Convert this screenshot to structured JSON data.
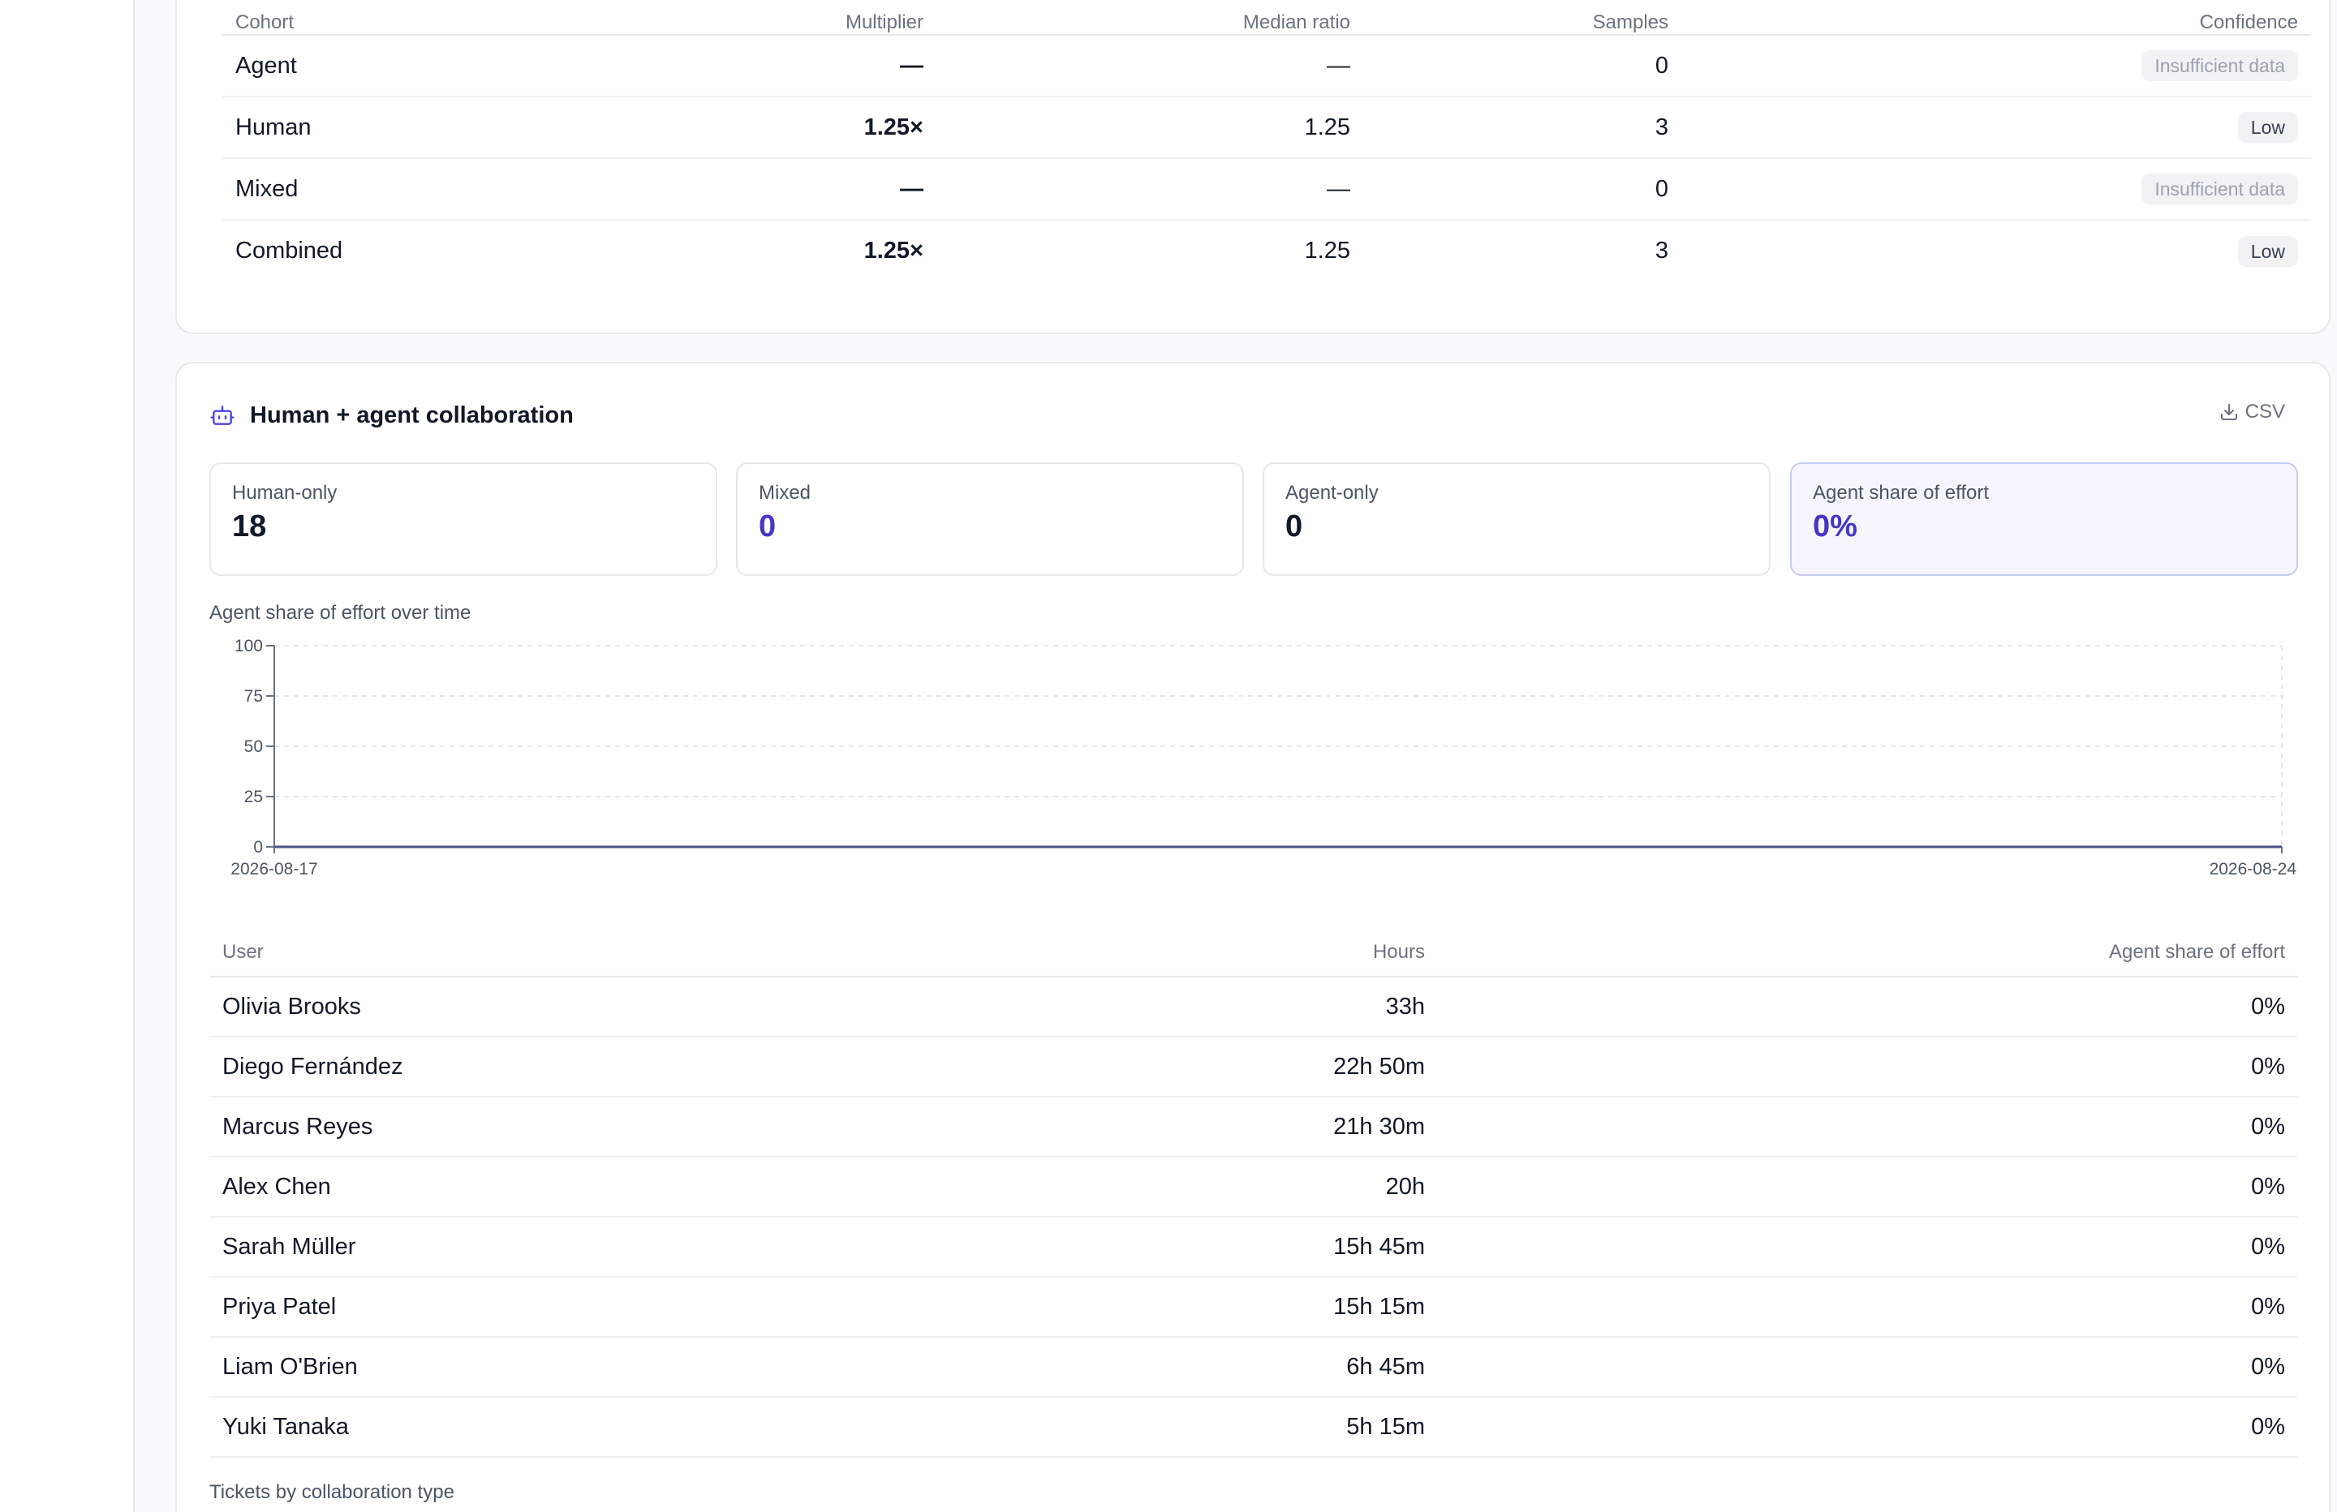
{
  "cohort_table": {
    "headers": [
      "Cohort",
      "Multiplier",
      "Median ratio",
      "Samples",
      "Confidence"
    ],
    "rows": [
      {
        "cohort": "Agent",
        "multiplier": "—",
        "median_ratio": "—",
        "samples": "0",
        "confidence": "Insufficient data"
      },
      {
        "cohort": "Human",
        "multiplier": "1.25×",
        "median_ratio": "1.25",
        "samples": "3",
        "confidence": "Low"
      },
      {
        "cohort": "Mixed",
        "multiplier": "—",
        "median_ratio": "—",
        "samples": "0",
        "confidence": "Insufficient data"
      },
      {
        "cohort": "Combined",
        "multiplier": "1.25×",
        "median_ratio": "1.25",
        "samples": "3",
        "confidence": "Low"
      }
    ]
  },
  "collab": {
    "title": "Human + agent collaboration",
    "csv_label": "CSV",
    "stats": [
      {
        "label": "Human-only",
        "value": "18"
      },
      {
        "label": "Mixed",
        "value": "0"
      },
      {
        "label": "Agent-only",
        "value": "0"
      },
      {
        "label": "Agent share of effort",
        "value": "0%"
      }
    ],
    "chart_caption": "Agent share of effort over time",
    "users_headers": [
      "User",
      "Hours",
      "Agent share of effort"
    ],
    "users": [
      {
        "name": "Olivia Brooks",
        "hours": "33h",
        "share": "0%"
      },
      {
        "name": "Diego Fernández",
        "hours": "22h 50m",
        "share": "0%"
      },
      {
        "name": "Marcus Reyes",
        "hours": "21h 30m",
        "share": "0%"
      },
      {
        "name": "Alex Chen",
        "hours": "20h",
        "share": "0%"
      },
      {
        "name": "Sarah Müller",
        "hours": "15h 45m",
        "share": "0%"
      },
      {
        "name": "Priya Patel",
        "hours": "15h 15m",
        "share": "0%"
      },
      {
        "name": "Liam O'Brien",
        "hours": "6h 45m",
        "share": "0%"
      },
      {
        "name": "Yuki Tanaka",
        "hours": "5h 15m",
        "share": "0%"
      }
    ],
    "tickets_caption": "Tickets by collaboration type"
  },
  "colors": {
    "accent": "#4636c7",
    "line": "#4b4f8a",
    "grid": "#e5e7eb"
  },
  "chart_data": {
    "type": "line",
    "x": [
      "2026-08-17",
      "2026-08-24"
    ],
    "series": [
      {
        "values": [
          0,
          0
        ]
      }
    ],
    "yticks": [
      0,
      25,
      50,
      75,
      100
    ],
    "ylim": [
      0,
      100
    ],
    "xlabel": "",
    "ylabel": "",
    "grid": true
  }
}
